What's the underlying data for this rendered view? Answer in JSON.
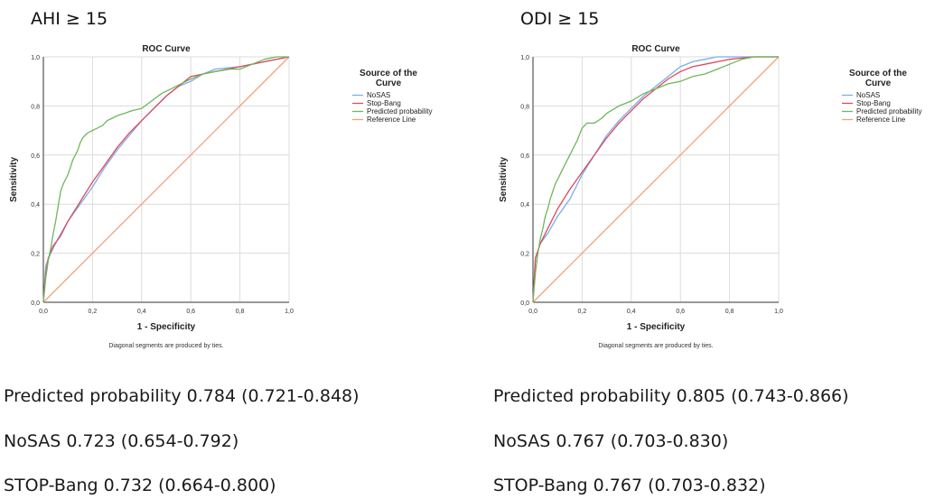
{
  "palette": {
    "nosas": "#7aaee8",
    "stopbang": "#e0485e",
    "predicted": "#6fb65a",
    "reference": "#f0a27a",
    "grid": "#dcdcdc",
    "axis": "#333333"
  },
  "panels": [
    {
      "label": "AHI ≥ 15",
      "stats": [
        "Predicted probability 0.784 (0.721-0.848)",
        "NoSAS 0.723 (0.654-0.792)",
        "STOP-Bang 0.732 (0.664-0.800)"
      ]
    },
    {
      "label": "ODI ≥ 15",
      "stats": [
        "Predicted probability 0.805 (0.743-0.866)",
        "NoSAS 0.767 (0.703-0.830)",
        "STOP-Bang 0.767 (0.703-0.832)"
      ]
    }
  ],
  "chart_data": [
    {
      "type": "line",
      "title": "ROC Curve",
      "xlabel": "1 - Specificity",
      "ylabel": "Sensitivity",
      "footnote": "Diagonal segments are produced by ties.",
      "legend_title": "Source of the Curve",
      "legend_position": "right",
      "grid": true,
      "xlim": [
        0,
        1
      ],
      "ylim": [
        0,
        1
      ],
      "xticks": [
        "0,0",
        "0,2",
        "0,4",
        "0,6",
        "0,8",
        "1,0"
      ],
      "yticks": [
        "0,0",
        "0,2",
        "0,4",
        "0,6",
        "0,8",
        "1,0"
      ],
      "series": [
        {
          "name": "NoSAS",
          "color": "#7aaee8",
          "x": [
            0,
            0.01,
            0.03,
            0.06,
            0.1,
            0.15,
            0.2,
            0.25,
            0.3,
            0.35,
            0.4,
            0.45,
            0.5,
            0.55,
            0.6,
            0.65,
            0.7,
            0.8,
            0.85,
            0.9,
            0.95,
            1.0
          ],
          "y": [
            0,
            0.15,
            0.2,
            0.26,
            0.33,
            0.4,
            0.47,
            0.55,
            0.62,
            0.68,
            0.74,
            0.79,
            0.84,
            0.88,
            0.9,
            0.93,
            0.95,
            0.96,
            0.97,
            0.98,
            0.99,
            1.0
          ]
        },
        {
          "name": "Stop-Bang",
          "color": "#e0485e",
          "x": [
            0,
            0.01,
            0.02,
            0.04,
            0.07,
            0.1,
            0.15,
            0.2,
            0.25,
            0.3,
            0.35,
            0.4,
            0.45,
            0.5,
            0.55,
            0.6,
            0.7,
            0.8,
            0.9,
            1.0
          ],
          "y": [
            0,
            0.12,
            0.18,
            0.23,
            0.27,
            0.33,
            0.41,
            0.49,
            0.56,
            0.63,
            0.69,
            0.74,
            0.79,
            0.84,
            0.88,
            0.92,
            0.94,
            0.96,
            0.98,
            1.0
          ]
        },
        {
          "name": "Predicted probability",
          "color": "#6fb65a",
          "x": [
            0,
            0.01,
            0.02,
            0.03,
            0.04,
            0.05,
            0.06,
            0.07,
            0.08,
            0.09,
            0.1,
            0.11,
            0.12,
            0.13,
            0.14,
            0.15,
            0.16,
            0.17,
            0.18,
            0.2,
            0.22,
            0.24,
            0.26,
            0.28,
            0.3,
            0.33,
            0.36,
            0.4,
            0.44,
            0.48,
            0.52,
            0.56,
            0.6,
            0.65,
            0.7,
            0.76,
            0.8,
            0.85,
            0.9,
            0.95,
            1.0
          ],
          "y": [
            0,
            0.1,
            0.17,
            0.22,
            0.28,
            0.33,
            0.39,
            0.45,
            0.48,
            0.5,
            0.52,
            0.55,
            0.58,
            0.6,
            0.62,
            0.65,
            0.67,
            0.68,
            0.69,
            0.7,
            0.71,
            0.72,
            0.74,
            0.75,
            0.76,
            0.77,
            0.78,
            0.79,
            0.82,
            0.85,
            0.87,
            0.89,
            0.91,
            0.93,
            0.94,
            0.95,
            0.95,
            0.97,
            0.99,
            1.0,
            1.0
          ]
        },
        {
          "name": "Reference Line",
          "color": "#f0a27a",
          "x": [
            0,
            1
          ],
          "y": [
            0,
            1
          ]
        }
      ]
    },
    {
      "type": "line",
      "title": "ROC Curve",
      "xlabel": "1 - Specificity",
      "ylabel": "Sensitivity",
      "footnote": "Diagonal segments are produced by ties.",
      "legend_title": "Source of the Curve",
      "legend_position": "right",
      "grid": true,
      "xlim": [
        0,
        1
      ],
      "ylim": [
        0,
        1
      ],
      "xticks": [
        "0,0",
        "0,2",
        "0,4",
        "0,6",
        "0,8",
        "1,0"
      ],
      "yticks": [
        "0,0",
        "0,2",
        "0,4",
        "0,6",
        "0,8",
        "1,0"
      ],
      "series": [
        {
          "name": "NoSAS",
          "color": "#7aaee8",
          "x": [
            0,
            0.01,
            0.03,
            0.06,
            0.1,
            0.15,
            0.2,
            0.25,
            0.3,
            0.35,
            0.4,
            0.45,
            0.5,
            0.55,
            0.6,
            0.65,
            0.7,
            0.75,
            0.8,
            0.9,
            1.0
          ],
          "y": [
            0,
            0.18,
            0.24,
            0.28,
            0.35,
            0.42,
            0.52,
            0.6,
            0.68,
            0.74,
            0.79,
            0.84,
            0.88,
            0.92,
            0.96,
            0.98,
            0.99,
            1.0,
            1.0,
            1.0,
            1.0
          ]
        },
        {
          "name": "Stop-Bang",
          "color": "#e0485e",
          "x": [
            0,
            0.01,
            0.03,
            0.06,
            0.1,
            0.15,
            0.2,
            0.25,
            0.3,
            0.35,
            0.4,
            0.45,
            0.5,
            0.55,
            0.6,
            0.65,
            0.7,
            0.8,
            0.9,
            1.0
          ],
          "y": [
            0,
            0.18,
            0.24,
            0.3,
            0.38,
            0.46,
            0.53,
            0.6,
            0.67,
            0.73,
            0.78,
            0.83,
            0.87,
            0.91,
            0.94,
            0.96,
            0.97,
            0.99,
            1.0,
            1.0
          ]
        },
        {
          "name": "Predicted probability",
          "color": "#6fb65a",
          "x": [
            0,
            0.01,
            0.02,
            0.03,
            0.04,
            0.05,
            0.06,
            0.07,
            0.08,
            0.09,
            0.1,
            0.12,
            0.14,
            0.16,
            0.18,
            0.2,
            0.22,
            0.25,
            0.28,
            0.3,
            0.35,
            0.4,
            0.45,
            0.5,
            0.55,
            0.6,
            0.65,
            0.7,
            0.75,
            0.8,
            0.85,
            0.9,
            1.0
          ],
          "y": [
            0,
            0.12,
            0.2,
            0.26,
            0.3,
            0.35,
            0.38,
            0.42,
            0.45,
            0.48,
            0.5,
            0.54,
            0.58,
            0.62,
            0.66,
            0.71,
            0.73,
            0.73,
            0.75,
            0.77,
            0.8,
            0.82,
            0.85,
            0.87,
            0.89,
            0.9,
            0.92,
            0.93,
            0.95,
            0.97,
            0.99,
            1.0,
            1.0
          ]
        },
        {
          "name": "Reference Line",
          "color": "#f0a27a",
          "x": [
            0,
            1
          ],
          "y": [
            0,
            1
          ]
        }
      ]
    }
  ]
}
